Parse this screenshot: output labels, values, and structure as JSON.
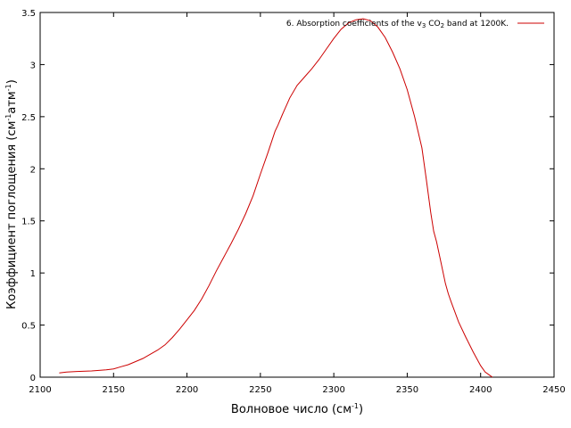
{
  "chart_data": {
    "type": "line",
    "title": "",
    "xlabel": {
      "main": "Волновое число (см",
      "sup": "-1",
      "tail": ")"
    },
    "ylabel": {
      "main": "Коэффициент поглощения (см",
      "sup1": "-1",
      "mid": "атм",
      "sup2": "-1",
      "tail": ")"
    },
    "xlim": [
      2100,
      2450
    ],
    "ylim": [
      0,
      3.5
    ],
    "xticks": [
      2100,
      2150,
      2200,
      2250,
      2300,
      2350,
      2400,
      2450
    ],
    "yticks": [
      0,
      0.5,
      1,
      1.5,
      2,
      2.5,
      3,
      3.5
    ],
    "xtick_labels": [
      "2100",
      "2150",
      "2200",
      "2250",
      "2300",
      "2350",
      "2400",
      "2450"
    ],
    "ytick_labels": [
      "0",
      "0.5",
      "1",
      "1.5",
      "2",
      "2.5",
      "3",
      "3.5"
    ],
    "grid": false,
    "legend_position": "top-right",
    "legend": {
      "prefix": "6. Absorption coefficients of the v",
      "sub1": "3",
      "middle": " CO",
      "sub2": "2",
      "suffix": " band at 1200K."
    },
    "series": [
      {
        "color": "#cc0000",
        "x": [
          2113,
          2118,
          2125,
          2135,
          2145,
          2150,
          2155,
          2160,
          2165,
          2170,
          2175,
          2180,
          2185,
          2190,
          2195,
          2200,
          2205,
          2210,
          2215,
          2220,
          2225,
          2230,
          2235,
          2240,
          2245,
          2250,
          2255,
          2260,
          2262,
          2265,
          2270,
          2275,
          2280,
          2285,
          2290,
          2295,
          2300,
          2305,
          2310,
          2315,
          2320,
          2325,
          2330,
          2335,
          2340,
          2345,
          2350,
          2355,
          2360,
          2363,
          2366,
          2368,
          2370,
          2373,
          2376,
          2378,
          2380,
          2385,
          2390,
          2395,
          2400,
          2403,
          2406,
          2408
        ],
        "y": [
          0.04,
          0.05,
          0.055,
          0.06,
          0.07,
          0.08,
          0.1,
          0.12,
          0.15,
          0.18,
          0.22,
          0.26,
          0.31,
          0.38,
          0.46,
          0.55,
          0.64,
          0.75,
          0.88,
          1.02,
          1.15,
          1.28,
          1.42,
          1.57,
          1.74,
          1.95,
          2.15,
          2.36,
          2.42,
          2.52,
          2.68,
          2.8,
          2.88,
          2.96,
          3.05,
          3.15,
          3.25,
          3.34,
          3.4,
          3.43,
          3.44,
          3.42,
          3.36,
          3.26,
          3.12,
          2.96,
          2.76,
          2.5,
          2.2,
          1.9,
          1.58,
          1.4,
          1.3,
          1.1,
          0.9,
          0.8,
          0.72,
          0.53,
          0.38,
          0.24,
          0.11,
          0.05,
          0.02,
          0.0
        ]
      }
    ]
  }
}
